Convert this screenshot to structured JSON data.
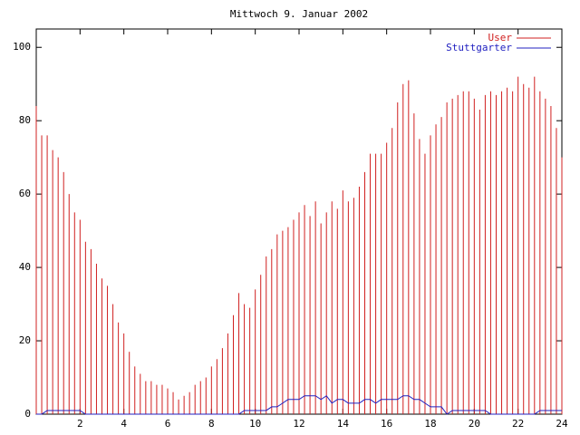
{
  "chart_data": {
    "type": "impulses_lines",
    "title": "Mittwoch 9. Januar 2002",
    "x": [
      0,
      0.25,
      0.5,
      0.75,
      1,
      1.25,
      1.5,
      1.75,
      2,
      2.25,
      2.5,
      2.75,
      3,
      3.25,
      3.5,
      3.75,
      4,
      4.25,
      4.5,
      4.75,
      5,
      5.25,
      5.5,
      5.75,
      6,
      6.25,
      6.5,
      6.75,
      7,
      7.25,
      7.5,
      7.75,
      8,
      8.25,
      8.5,
      8.75,
      9,
      9.25,
      9.5,
      9.75,
      10,
      10.25,
      10.5,
      10.75,
      11,
      11.25,
      11.5,
      11.75,
      12,
      12.25,
      12.5,
      12.75,
      13,
      13.25,
      13.5,
      13.75,
      14,
      14.25,
      14.5,
      14.75,
      15,
      15.25,
      15.5,
      15.75,
      16,
      16.25,
      16.5,
      16.75,
      17,
      17.25,
      17.5,
      17.75,
      18,
      18.25,
      18.5,
      18.75,
      19,
      19.25,
      19.5,
      19.75,
      20,
      20.25,
      20.5,
      20.75,
      21,
      21.25,
      21.5,
      21.75,
      22,
      22.25,
      22.5,
      22.75,
      23,
      23.25,
      23.5,
      23.75,
      24
    ],
    "series": [
      {
        "name": "User",
        "color": "#d02020",
        "style": "impulses",
        "values": [
          84,
          76,
          76,
          72,
          70,
          66,
          60,
          55,
          53,
          47,
          45,
          41,
          37,
          35,
          30,
          25,
          22,
          17,
          13,
          11,
          9,
          9,
          8,
          8,
          7,
          6,
          4,
          5,
          6,
          8,
          9,
          10,
          13,
          15,
          18,
          22,
          27,
          33,
          30,
          29,
          34,
          38,
          43,
          45,
          49,
          50,
          51,
          53,
          55,
          57,
          54,
          58,
          52,
          55,
          58,
          56,
          61,
          58,
          59,
          62,
          66,
          71,
          71,
          71,
          74,
          78,
          85,
          90,
          91,
          82,
          75,
          71,
          76,
          79,
          81,
          85,
          86,
          87,
          88,
          88,
          86,
          83,
          87,
          88,
          87,
          88,
          89,
          88,
          92,
          90,
          89,
          92,
          88,
          86,
          84,
          78,
          70
        ]
      },
      {
        "name": "Stuttgarter",
        "color": "#2020c0",
        "style": "lines",
        "values": [
          0,
          0,
          1,
          1,
          1,
          1,
          1,
          1,
          1,
          0,
          0,
          0,
          0,
          0,
          0,
          0,
          0,
          0,
          0,
          0,
          0,
          0,
          0,
          0,
          0,
          0,
          0,
          0,
          0,
          0,
          0,
          0,
          0,
          0,
          0,
          0,
          0,
          0,
          1,
          1,
          1,
          1,
          1,
          2,
          2,
          3,
          4,
          4,
          4,
          5,
          5,
          5,
          4,
          5,
          3,
          4,
          4,
          3,
          3,
          3,
          4,
          4,
          3,
          4,
          4,
          4,
          4,
          5,
          5,
          4,
          4,
          3,
          2,
          2,
          2,
          0,
          1,
          1,
          1,
          1,
          1,
          1,
          1,
          0,
          0,
          0,
          0,
          0,
          0,
          0,
          0,
          0,
          1,
          1,
          1,
          1,
          1
        ]
      }
    ],
    "xlim": [
      0,
      24
    ],
    "xticks": [
      2,
      4,
      6,
      8,
      10,
      12,
      14,
      16,
      18,
      20,
      22,
      24
    ],
    "ylim": [
      0,
      105
    ],
    "yticks": [
      0,
      20,
      40,
      60,
      80,
      100
    ],
    "legend": "top-right"
  }
}
